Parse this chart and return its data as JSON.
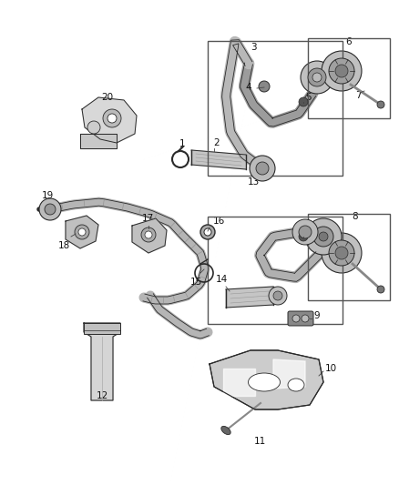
{
  "bg_color": "#ffffff",
  "line_color": "#2a2a2a",
  "fig_width": 4.38,
  "fig_height": 5.33,
  "dpi": 100
}
